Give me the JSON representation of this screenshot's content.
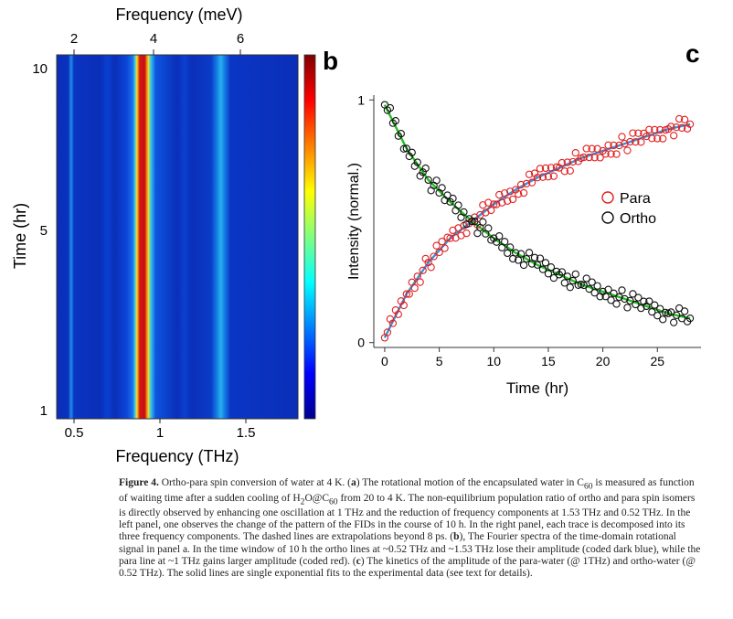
{
  "panel_a": {
    "top_axis_label": "Frequency (meV)",
    "top_ticks": [
      "2",
      "4",
      "6"
    ],
    "x_label": "Frequency (THz)",
    "x_ticks": [
      "0.5",
      "1",
      "1.5"
    ],
    "y_label": "Time (hr)",
    "y_ticks": [
      "10",
      "5",
      "1"
    ]
  },
  "panel_b_letter": "b",
  "panel_c_letter": "c",
  "chart_data": {
    "type": "scatter",
    "xlabel": "Time (hr)",
    "ylabel": "Intensity (normal.)",
    "x_ticks": [
      "0",
      "5",
      "10",
      "15",
      "20",
      "25"
    ],
    "y_ticks": [
      "0",
      "1"
    ],
    "xlim": [
      -1,
      29
    ],
    "ylim": [
      -0.02,
      1.02
    ],
    "legend_position": "right",
    "series": [
      {
        "name": "Para",
        "color": "#e02020",
        "marker": "open-circle",
        "x": [
          0,
          2,
          4,
          6,
          8,
          10,
          12,
          14,
          16,
          18,
          20,
          22,
          24,
          26,
          28
        ],
        "y": [
          0.02,
          0.2,
          0.33,
          0.43,
          0.5,
          0.57,
          0.63,
          0.68,
          0.72,
          0.76,
          0.79,
          0.82,
          0.85,
          0.88,
          0.9
        ]
      },
      {
        "name": "Ortho",
        "color": "#111111",
        "marker": "open-circle",
        "x": [
          0,
          2,
          4,
          6,
          8,
          10,
          12,
          14,
          16,
          18,
          20,
          22,
          24,
          26,
          28
        ],
        "y": [
          0.98,
          0.8,
          0.67,
          0.58,
          0.5,
          0.43,
          0.37,
          0.32,
          0.28,
          0.24,
          0.21,
          0.18,
          0.15,
          0.12,
          0.1
        ]
      }
    ],
    "fits": [
      {
        "color": "#3a8fd8"
      },
      {
        "color": "#20c020"
      }
    ]
  },
  "caption": {
    "figure_label": "Figure 4.",
    "sentence_1": "Ortho-para spin conversion of water at 4 K. (",
    "a_mark": "a",
    "sentence_2": ") The rotational motion of the encapsulated water in C",
    "c60_sub": "60",
    "line_2a": " is measured as function of waiting time after a sudden cooling of H",
    "h2_sub": "2",
    "line_2b": "O@C",
    "c60_sub2": "60",
    "line_2c": " from 20 to 4 K. The non-equilibrium population ratio of ortho and para spin isomers is directly observed by enhancing one oscillation at 1 THz and the reduction of frequency components at 1.53 THz and 0.52 THz. In the left panel, one observes the change of the pattern of the FIDs in the course of 10 h. In the right panel, each trace is decomposed into its three frequency components. The dashed lines are extrapolations beyond 8 ps. (",
    "b_mark": "b",
    "line_3": "), The Fourier spectra of the time-domain rotational signal in panel a. In the time window of 10 h the ortho lines at ~0.52 THz and ~1.53 THz lose their amplitude (coded dark blue), while the para line at ~1 THz gains larger amplitude (coded red). (",
    "c_mark": "c",
    "line_4": ") The kinetics of the amplitude of the para-water (@ 1THz) and ortho-water (@ 0.52 THz). The solid lines are single exponential fits to the experimental data (see text for details)."
  }
}
